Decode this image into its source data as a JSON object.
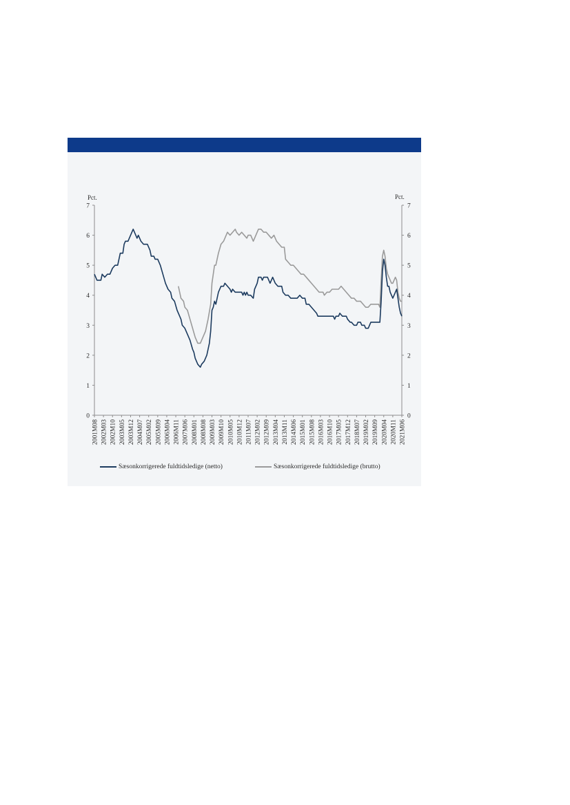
{
  "colors": {
    "header": "#0d3a8a",
    "panel": "#f3f5f7",
    "netto": "#1b3a5e",
    "brutto": "#9a9a9a",
    "axis": "#8c8c8c",
    "text": "#2a2a2a"
  },
  "chart_data": {
    "type": "line",
    "title": "",
    "ylabel_left": "Pct.",
    "ylabel_right": "Pct.",
    "ylim": [
      0,
      7
    ],
    "yticks": [
      "0",
      "1",
      "2",
      "3",
      "4",
      "5",
      "6",
      "7"
    ],
    "xlim": [
      "2001M08",
      "2021M06"
    ],
    "xtick_labels": [
      "2001M08",
      "2002M03",
      "2002M10",
      "2003M05",
      "2003M12",
      "2004M07",
      "2005M02",
      "2005M09",
      "2006M04",
      "2006M11",
      "2007M06",
      "2008M01",
      "2008M08",
      "2009M03",
      "2009M10",
      "2010M05",
      "2010M12",
      "2011M07",
      "2012M02",
      "2012M09",
      "2013M04",
      "2013M11",
      "2014M06",
      "2015M01",
      "2015M08",
      "2016M03",
      "2016M10",
      "2017M05",
      "2017M12",
      "2018M07",
      "2019M02",
      "2019M09",
      "2020M04",
      "2020M11",
      "2021M06"
    ],
    "legend_position": "bottom",
    "series": [
      {
        "name": "Sæsonkorrigerede fuldtidsledige (netto)",
        "points": [
          [
            "2001M08",
            4.7
          ],
          [
            "2001M09",
            4.6
          ],
          [
            "2001M10",
            4.5
          ],
          [
            "2002M01",
            4.5
          ],
          [
            "2002M02",
            4.7
          ],
          [
            "2002M04",
            4.6
          ],
          [
            "2002M06",
            4.7
          ],
          [
            "2002M08",
            4.7
          ],
          [
            "2002M10",
            4.9
          ],
          [
            "2002M12",
            5.0
          ],
          [
            "2003M02",
            5.0
          ],
          [
            "2003M03",
            5.2
          ],
          [
            "2003M04",
            5.4
          ],
          [
            "2003M06",
            5.4
          ],
          [
            "2003M07",
            5.7
          ],
          [
            "2003M08",
            5.8
          ],
          [
            "2003M10",
            5.8
          ],
          [
            "2003M12",
            6.0
          ],
          [
            "2004M02",
            6.2
          ],
          [
            "2004M04",
            6.0
          ],
          [
            "2004M05",
            5.9
          ],
          [
            "2004M06",
            6.0
          ],
          [
            "2004M08",
            5.8
          ],
          [
            "2004M10",
            5.7
          ],
          [
            "2005M01",
            5.7
          ],
          [
            "2005M03",
            5.5
          ],
          [
            "2005M04",
            5.3
          ],
          [
            "2005M06",
            5.3
          ],
          [
            "2005M07",
            5.2
          ],
          [
            "2005M09",
            5.2
          ],
          [
            "2005M11",
            5.0
          ],
          [
            "2006M01",
            4.7
          ],
          [
            "2006M03",
            4.4
          ],
          [
            "2006M05",
            4.2
          ],
          [
            "2006M07",
            4.1
          ],
          [
            "2006M08",
            3.9
          ],
          [
            "2006M10",
            3.8
          ],
          [
            "2006M12",
            3.5
          ],
          [
            "2007M02",
            3.3
          ],
          [
            "2007M03",
            3.2
          ],
          [
            "2007M04",
            3.0
          ],
          [
            "2007M06",
            2.9
          ],
          [
            "2007M08",
            2.7
          ],
          [
            "2007M10",
            2.5
          ],
          [
            "2007M12",
            2.2
          ],
          [
            "2008M01",
            2.1
          ],
          [
            "2008M02",
            1.9
          ],
          [
            "2008M04",
            1.7
          ],
          [
            "2008M06",
            1.6
          ],
          [
            "2008M07",
            1.7
          ],
          [
            "2008M09",
            1.8
          ],
          [
            "2008M11",
            2.0
          ],
          [
            "2009M01",
            2.4
          ],
          [
            "2009M02",
            2.8
          ],
          [
            "2009M03",
            3.5
          ],
          [
            "2009M04",
            3.6
          ],
          [
            "2009M05",
            3.8
          ],
          [
            "2009M06",
            3.7
          ],
          [
            "2009M08",
            4.1
          ],
          [
            "2009M10",
            4.3
          ],
          [
            "2009M12",
            4.3
          ],
          [
            "2010M01",
            4.4
          ],
          [
            "2010M03",
            4.3
          ],
          [
            "2010M05",
            4.2
          ],
          [
            "2010M06",
            4.1
          ],
          [
            "2010M07",
            4.2
          ],
          [
            "2010M09",
            4.1
          ],
          [
            "2010M12",
            4.1
          ],
          [
            "2011M02",
            4.1
          ],
          [
            "2011M03",
            4.0
          ],
          [
            "2011M04",
            4.1
          ],
          [
            "2011M05",
            4.0
          ],
          [
            "2011M06",
            4.1
          ],
          [
            "2011M07",
            4.0
          ],
          [
            "2011M09",
            4.0
          ],
          [
            "2011M11",
            3.9
          ],
          [
            "2011M12",
            4.2
          ],
          [
            "2012M02",
            4.4
          ],
          [
            "2012M03",
            4.6
          ],
          [
            "2012M05",
            4.6
          ],
          [
            "2012M06",
            4.5
          ],
          [
            "2012M07",
            4.6
          ],
          [
            "2012M10",
            4.6
          ],
          [
            "2012M12",
            4.4
          ],
          [
            "2013M02",
            4.6
          ],
          [
            "2013M04",
            4.4
          ],
          [
            "2013M06",
            4.3
          ],
          [
            "2013M09",
            4.3
          ],
          [
            "2013M10",
            4.1
          ],
          [
            "2013M12",
            4.0
          ],
          [
            "2014M02",
            4.0
          ],
          [
            "2014M04",
            3.9
          ],
          [
            "2014M06",
            3.9
          ],
          [
            "2014M09",
            3.9
          ],
          [
            "2014M11",
            4.0
          ],
          [
            "2015M01",
            3.9
          ],
          [
            "2015M03",
            3.9
          ],
          [
            "2015M04",
            3.7
          ],
          [
            "2015M06",
            3.7
          ],
          [
            "2015M08",
            3.6
          ],
          [
            "2015M10",
            3.5
          ],
          [
            "2015M12",
            3.4
          ],
          [
            "2016M01",
            3.3
          ],
          [
            "2016M05",
            3.3
          ],
          [
            "2016M09",
            3.3
          ],
          [
            "2017M01",
            3.3
          ],
          [
            "2017M02",
            3.2
          ],
          [
            "2017M03",
            3.3
          ],
          [
            "2017M05",
            3.3
          ],
          [
            "2017M06",
            3.4
          ],
          [
            "2017M08",
            3.3
          ],
          [
            "2017M11",
            3.3
          ],
          [
            "2017M12",
            3.2
          ],
          [
            "2018M02",
            3.1
          ],
          [
            "2018M03",
            3.1
          ],
          [
            "2018M05",
            3.0
          ],
          [
            "2018M07",
            3.0
          ],
          [
            "2018M08",
            3.1
          ],
          [
            "2018M10",
            3.1
          ],
          [
            "2018M11",
            3.0
          ],
          [
            "2019M01",
            3.0
          ],
          [
            "2019M02",
            2.9
          ],
          [
            "2019M04",
            2.9
          ],
          [
            "2019M06",
            3.1
          ],
          [
            "2019M08",
            3.1
          ],
          [
            "2019M10",
            3.1
          ],
          [
            "2019M12",
            3.1
          ],
          [
            "2020M01",
            3.1
          ],
          [
            "2020M02",
            3.8
          ],
          [
            "2020M03",
            4.8
          ],
          [
            "2020M04",
            5.2
          ],
          [
            "2020M05",
            5.0
          ],
          [
            "2020M06",
            4.6
          ],
          [
            "2020M07",
            4.3
          ],
          [
            "2020M08",
            4.3
          ],
          [
            "2020M09",
            4.1
          ],
          [
            "2020M10",
            4.0
          ],
          [
            "2020M11",
            3.9
          ],
          [
            "2021M01",
            4.1
          ],
          [
            "2021M02",
            4.2
          ],
          [
            "2021M03",
            3.9
          ],
          [
            "2021M04",
            3.6
          ],
          [
            "2021M05",
            3.4
          ],
          [
            "2021M06",
            3.3
          ]
        ]
      },
      {
        "name": "Sæsonkorrigerede fuldtidsledige (brutto)",
        "points": [
          [
            "2007M01",
            4.3
          ],
          [
            "2007M02",
            4.1
          ],
          [
            "2007M03",
            3.9
          ],
          [
            "2007M05",
            3.8
          ],
          [
            "2007M06",
            3.6
          ],
          [
            "2007M08",
            3.5
          ],
          [
            "2007M10",
            3.2
          ],
          [
            "2007M12",
            2.9
          ],
          [
            "2008M02",
            2.6
          ],
          [
            "2008M04",
            2.4
          ],
          [
            "2008M06",
            2.4
          ],
          [
            "2008M08",
            2.6
          ],
          [
            "2008M10",
            2.8
          ],
          [
            "2008M12",
            3.2
          ],
          [
            "2009M02",
            3.7
          ],
          [
            "2009M03",
            4.4
          ],
          [
            "2009M04",
            4.7
          ],
          [
            "2009M05",
            5.0
          ],
          [
            "2009M06",
            5.0
          ],
          [
            "2009M08",
            5.4
          ],
          [
            "2009M10",
            5.7
          ],
          [
            "2009M12",
            5.8
          ],
          [
            "2010M02",
            6.0
          ],
          [
            "2010M03",
            6.1
          ],
          [
            "2010M05",
            6.0
          ],
          [
            "2010M07",
            6.1
          ],
          [
            "2010M09",
            6.2
          ],
          [
            "2010M10",
            6.1
          ],
          [
            "2010M12",
            6.0
          ],
          [
            "2011M02",
            6.1
          ],
          [
            "2011M04",
            6.0
          ],
          [
            "2011M06",
            5.9
          ],
          [
            "2011M07",
            6.0
          ],
          [
            "2011M09",
            6.0
          ],
          [
            "2011M11",
            5.8
          ],
          [
            "2012M01",
            6.0
          ],
          [
            "2012M03",
            6.2
          ],
          [
            "2012M05",
            6.2
          ],
          [
            "2012M07",
            6.1
          ],
          [
            "2012M09",
            6.1
          ],
          [
            "2012M11",
            6.0
          ],
          [
            "2013M01",
            5.9
          ],
          [
            "2013M03",
            6.0
          ],
          [
            "2013M05",
            5.8
          ],
          [
            "2013M07",
            5.7
          ],
          [
            "2013M09",
            5.6
          ],
          [
            "2013M11",
            5.6
          ],
          [
            "2013M12",
            5.2
          ],
          [
            "2014M02",
            5.1
          ],
          [
            "2014M04",
            5.0
          ],
          [
            "2014M06",
            5.0
          ],
          [
            "2014M08",
            4.9
          ],
          [
            "2014M10",
            4.8
          ],
          [
            "2014M12",
            4.7
          ],
          [
            "2015M02",
            4.7
          ],
          [
            "2015M04",
            4.6
          ],
          [
            "2015M06",
            4.5
          ],
          [
            "2015M08",
            4.4
          ],
          [
            "2015M10",
            4.3
          ],
          [
            "2015M12",
            4.2
          ],
          [
            "2016M02",
            4.1
          ],
          [
            "2016M05",
            4.1
          ],
          [
            "2016M06",
            4.0
          ],
          [
            "2016M08",
            4.1
          ],
          [
            "2016M10",
            4.1
          ],
          [
            "2016M12",
            4.2
          ],
          [
            "2017M03",
            4.2
          ],
          [
            "2017M05",
            4.2
          ],
          [
            "2017M07",
            4.3
          ],
          [
            "2017M09",
            4.2
          ],
          [
            "2017M11",
            4.1
          ],
          [
            "2018M01",
            4.0
          ],
          [
            "2018M03",
            3.9
          ],
          [
            "2018M05",
            3.9
          ],
          [
            "2018M07",
            3.8
          ],
          [
            "2018M10",
            3.8
          ],
          [
            "2018M12",
            3.7
          ],
          [
            "2019M02",
            3.6
          ],
          [
            "2019M04",
            3.6
          ],
          [
            "2019M06",
            3.7
          ],
          [
            "2019M08",
            3.7
          ],
          [
            "2019M12",
            3.7
          ],
          [
            "2020M01",
            3.6
          ],
          [
            "2020M02",
            4.5
          ],
          [
            "2020M03",
            5.3
          ],
          [
            "2020M04",
            5.5
          ],
          [
            "2020M05",
            5.3
          ],
          [
            "2020M06",
            4.9
          ],
          [
            "2020M07",
            4.7
          ],
          [
            "2020M08",
            4.6
          ],
          [
            "2020M09",
            4.5
          ],
          [
            "2020M10",
            4.4
          ],
          [
            "2020M11",
            4.4
          ],
          [
            "2021M01",
            4.6
          ],
          [
            "2021M02",
            4.5
          ],
          [
            "2021M03",
            4.1
          ],
          [
            "2021M04",
            3.9
          ],
          [
            "2021M05",
            3.8
          ],
          [
            "2021M06",
            3.8
          ]
        ]
      }
    ]
  }
}
